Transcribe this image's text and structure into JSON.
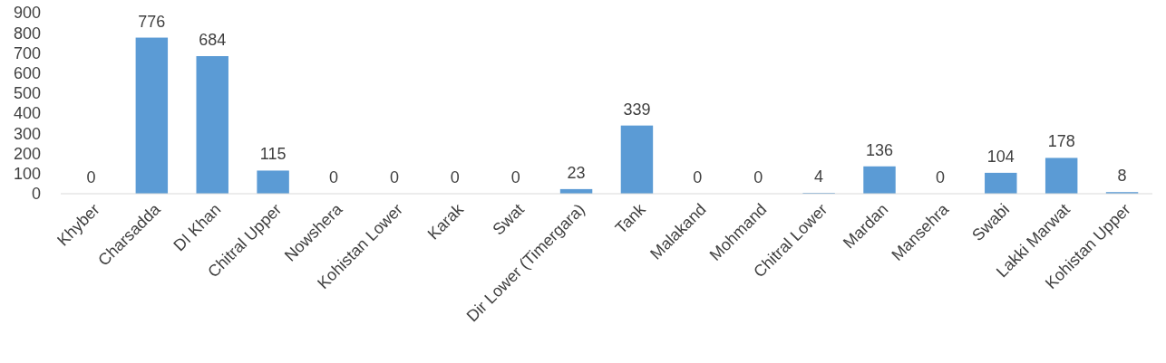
{
  "chart_data": {
    "type": "bar",
    "categories": [
      "Khyber",
      "Charsadda",
      "DI Khan",
      "Chitral Upper",
      "Nowshera",
      "Kohistan Lower",
      "Karak",
      "Swat",
      "Dir Lower (Timergara)",
      "Tank",
      "Malakand",
      "Mohmand",
      "Chitral Lower",
      "Mardan",
      "Mansehra",
      "Swabi",
      "Lakki Marwat",
      "Kohistan Upper"
    ],
    "values": [
      0,
      776,
      684,
      115,
      0,
      0,
      0,
      0,
      23,
      339,
      0,
      0,
      4,
      136,
      0,
      104,
      178,
      8
    ],
    "color": "#5b9bd5",
    "ylim": [
      0,
      900
    ],
    "yticks": [
      0,
      100,
      200,
      300,
      400,
      500,
      600,
      700,
      800,
      900
    ],
    "grid": false,
    "data_labels": true
  }
}
